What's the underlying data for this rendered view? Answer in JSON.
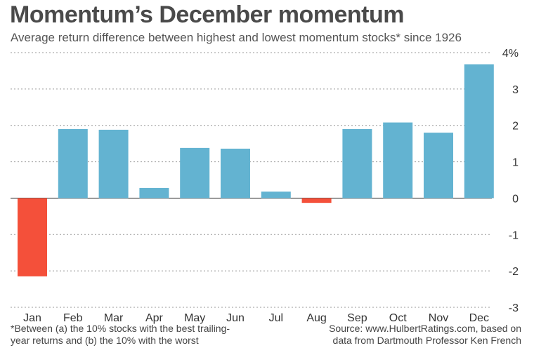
{
  "chart_data": {
    "type": "bar",
    "title": "Momentum’s December momentum",
    "subtitle": "Average return difference between highest and lowest momentum stocks* since 1926",
    "categories": [
      "Jan",
      "Feb",
      "Mar",
      "Apr",
      "May",
      "Jun",
      "Jul",
      "Aug",
      "Sep",
      "Oct",
      "Nov",
      "Dec"
    ],
    "values": [
      -2.15,
      1.9,
      1.88,
      0.28,
      1.38,
      1.36,
      0.18,
      -0.13,
      1.9,
      2.08,
      1.8,
      3.68
    ],
    "ylim": [
      -3,
      4
    ],
    "yticks": [
      4,
      3,
      2,
      1,
      0,
      -1,
      -2,
      -3
    ],
    "ytick_labels": [
      "4%",
      "3",
      "2",
      "1",
      "0",
      "-1",
      "-2",
      "-3"
    ],
    "xlabel": "",
    "ylabel": "",
    "grid": true,
    "colors": {
      "positive": "#63b3d1",
      "negative": "#f4503a",
      "grid": "#9a9a9a"
    }
  },
  "footnote": {
    "line1": "*Between (a) the 10% stocks with the best trailing-",
    "line2": "year returns and (b) the 10% with the worst"
  },
  "source": {
    "line1": "Source: www.HulbertRatings.com, based on",
    "line2": "data from Dartmouth Professor Ken French"
  }
}
